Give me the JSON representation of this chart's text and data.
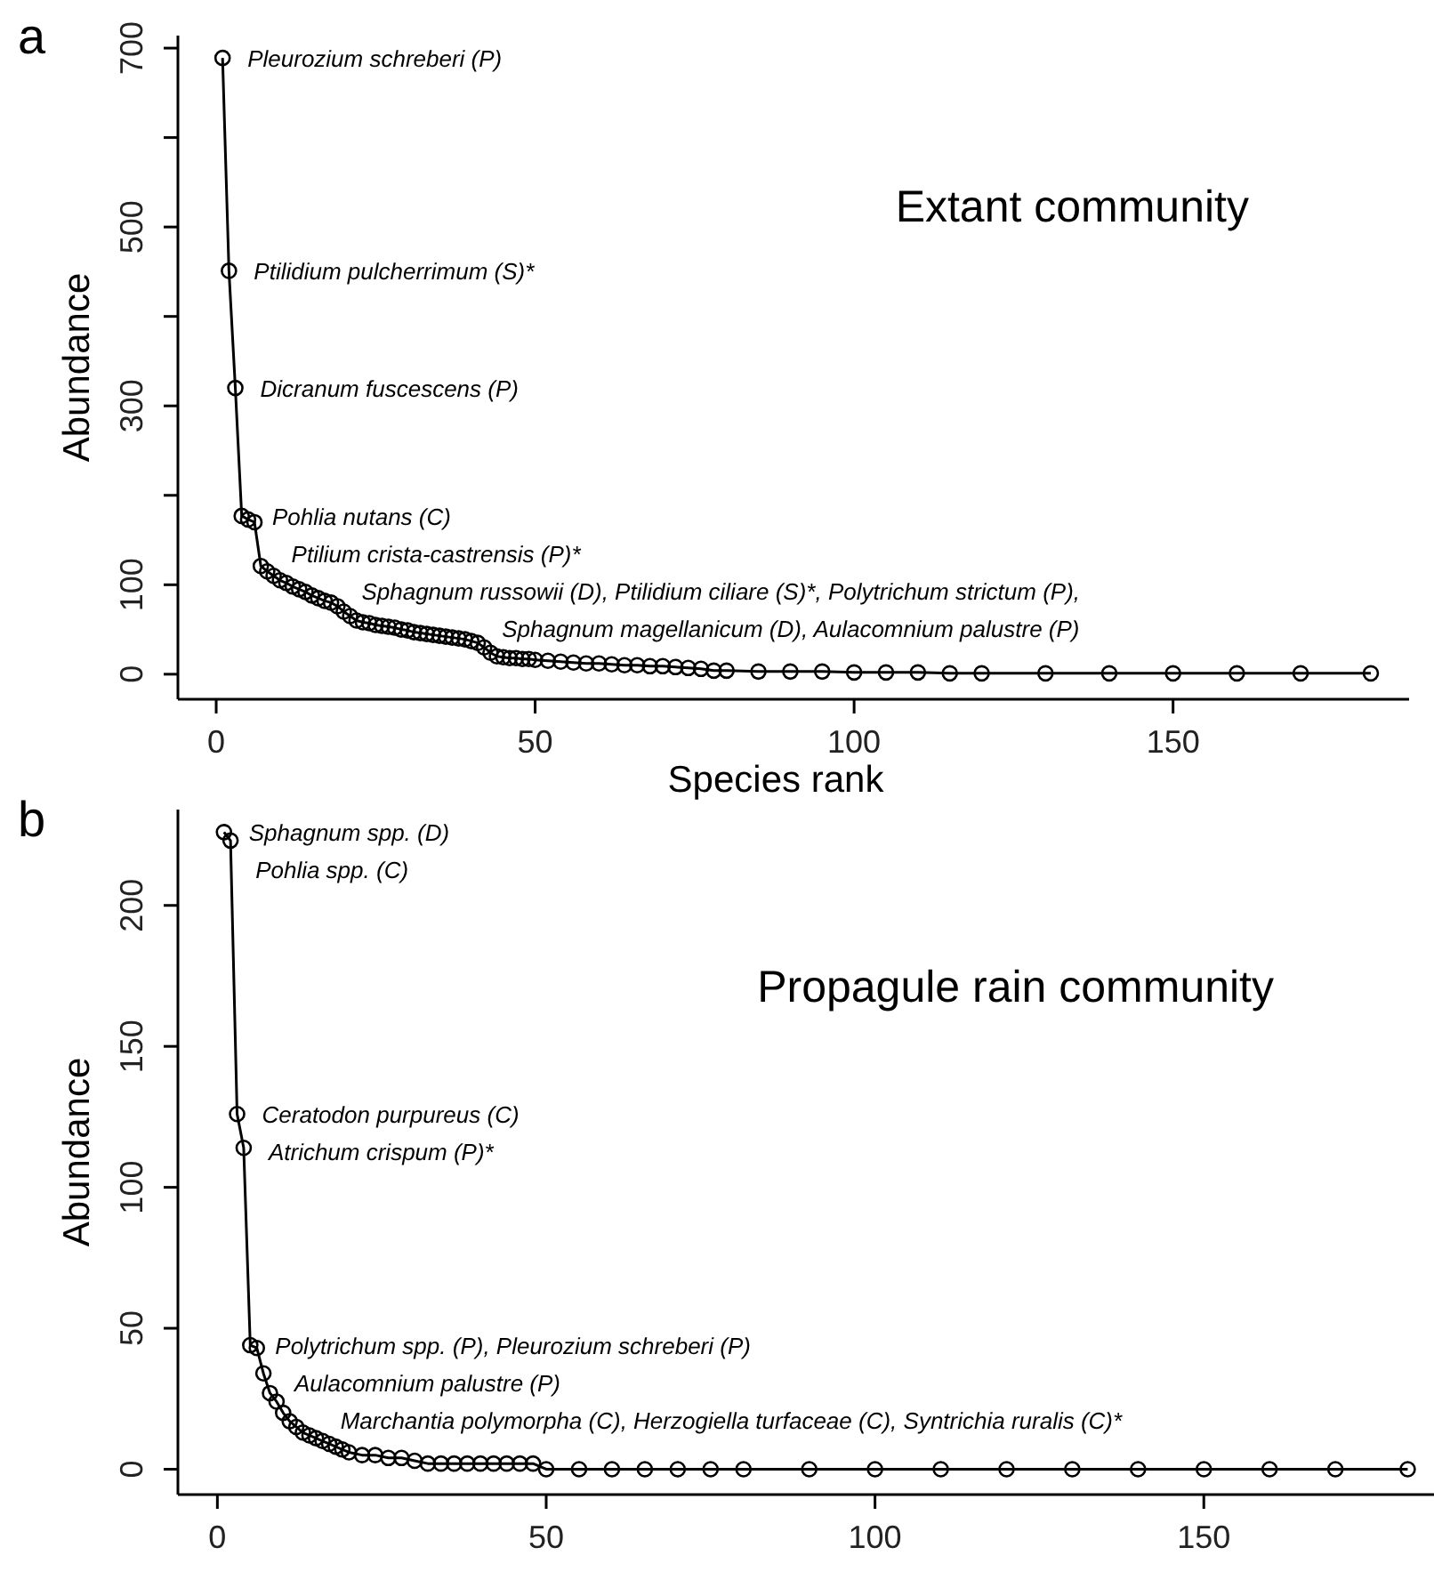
{
  "chart_data": [
    {
      "type": "line",
      "title": "Extant community",
      "xlabel": "Species rank",
      "ylabel": "Abundance",
      "marker": "circle",
      "line_style": "solid",
      "xlim": [
        -6,
        187
      ],
      "xticks": [
        0,
        50,
        100,
        150
      ],
      "ylim": [
        -28,
        714
      ],
      "yticks": [
        0,
        100,
        {
          "value": 200,
          "label": null
        },
        300,
        {
          "value": 400,
          "label": null
        },
        500,
        {
          "value": 600,
          "label": null
        },
        700
      ],
      "series": [
        {
          "color": "#000000",
          "x": [
            1,
            2,
            3,
            4,
            5,
            6,
            7,
            8,
            9,
            10,
            11,
            12,
            13,
            14,
            15,
            16,
            17,
            18,
            19,
            20,
            21,
            22,
            23,
            24,
            25,
            26,
            27,
            28,
            29,
            30,
            31,
            32,
            33,
            34,
            35,
            36,
            37,
            38,
            39,
            40,
            41,
            42,
            43,
            44,
            45,
            46,
            47,
            48,
            49,
            50,
            52,
            54,
            56,
            58,
            60,
            62,
            64,
            66,
            68,
            70,
            72,
            74,
            76,
            78,
            80,
            85,
            90,
            95,
            100,
            105,
            110,
            115,
            120,
            130,
            140,
            150,
            160,
            170,
            181
          ],
          "values": [
            689,
            451,
            320,
            177,
            173,
            170,
            121,
            115,
            110,
            105,
            102,
            98,
            95,
            92,
            88,
            85,
            82,
            80,
            76,
            70,
            65,
            60,
            58,
            57,
            55,
            54,
            53,
            52,
            50,
            49,
            47,
            46,
            45,
            44,
            43,
            42,
            41,
            40,
            39,
            37,
            35,
            30,
            24,
            20,
            19,
            18,
            18,
            17,
            17,
            16,
            15,
            14,
            13,
            12,
            12,
            11,
            10,
            10,
            9,
            9,
            8,
            7,
            6,
            4,
            4,
            3,
            3,
            3,
            2,
            2,
            2,
            1,
            1,
            1,
            1,
            1,
            1,
            1,
            1
          ]
        }
      ],
      "annotations": [
        "a",
        {
          "text": "Pleurozium schreberi (P)",
          "x": 1,
          "y": 689
        },
        {
          "text": "Ptilidium pulcherrimum (S)*",
          "x": 2,
          "y": 451
        },
        {
          "text": "Dicranum fuscescens (P)",
          "x": 3,
          "y": 320
        },
        {
          "text": "Pohlia nutans (C)",
          "x": 4,
          "y": 177
        },
        {
          "text": "Ptilium crista-castrensis (P)*",
          "x": 5,
          "y": 173
        },
        "Sphagnum russowii (D), Ptilidium ciliare (S)*, Polytrichum strictum (P),",
        "Sphagnum magellanicum (D), Aulacomnium palustre (P)"
      ]
    },
    {
      "type": "line",
      "title": "Propagule rain community",
      "ylabel": "Abundance",
      "marker": "circle",
      "line_style": "solid",
      "xlim": [
        -6,
        185
      ],
      "xticks": [
        0,
        50,
        100,
        150
      ],
      "ylim": [
        -9,
        234
      ],
      "yticks": [
        0,
        50,
        100,
        150,
        200
      ],
      "series": [
        {
          "color": "#000000",
          "x": [
            1,
            2,
            3,
            4,
            5,
            6,
            7,
            8,
            9,
            10,
            11,
            12,
            13,
            14,
            15,
            16,
            17,
            18,
            19,
            20,
            22,
            24,
            26,
            28,
            30,
            32,
            34,
            36,
            38,
            40,
            42,
            44,
            46,
            48,
            50,
            55,
            60,
            65,
            70,
            75,
            80,
            90,
            100,
            110,
            120,
            130,
            140,
            150,
            160,
            170,
            181
          ],
          "values": [
            226,
            223,
            126,
            114,
            44,
            43,
            34,
            27,
            24,
            20,
            17,
            15,
            13,
            12,
            11,
            10,
            9,
            8,
            7,
            6,
            5,
            5,
            4,
            4,
            3,
            2,
            2,
            2,
            2,
            2,
            2,
            2,
            2,
            2,
            0,
            0,
            0,
            0,
            0,
            0,
            0,
            0,
            0,
            0,
            0,
            0,
            0,
            0,
            0,
            0,
            0
          ]
        }
      ],
      "annotations": [
        "b",
        {
          "text": "Sphagnum spp. (D)",
          "x": 1,
          "y": 226
        },
        {
          "text": "Pohlia spp. (C)",
          "x": 2,
          "y": 223
        },
        {
          "text": "Ceratodon purpureus (C)",
          "x": 3,
          "y": 126
        },
        {
          "text": "Atrichum crispum (P)*",
          "x": 4,
          "y": 114
        },
        {
          "text": "Polytrichum spp. (P), Pleurozium schreberi (P)",
          "x": 5,
          "y": 44
        },
        {
          "text": "Aulacomnium palustre (P)",
          "x": 7,
          "y": 34
        },
        "Marchantia polymorpha (C), Herzogiella turfaceae (C), Syntrichia ruralis (C)*"
      ]
    }
  ]
}
